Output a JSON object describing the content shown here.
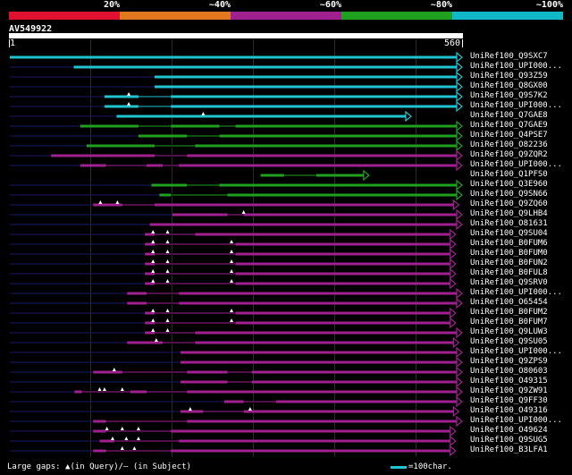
{
  "legend": {
    "colors": [
      "#e01030",
      "#e07820",
      "#a02090",
      "#20a020",
      "#10b8c8"
    ],
    "labels": [
      "20%",
      "~40%",
      "~60%",
      "~80%",
      "~100%"
    ]
  },
  "query": {
    "name": "AV549922",
    "start": "1",
    "end": "560"
  },
  "footer": {
    "gaps_text": "Large gaps: ▲(in Query)/– (in Subject)",
    "scale_text": "=100char."
  },
  "chart_data": {
    "type": "alignment",
    "query_length": 560,
    "color_by_identity": {
      "cyan": "~100%",
      "green": "~80%",
      "purple": "~60%"
    },
    "hits": [
      {
        "name": "UniRef100_Q9SXC7",
        "color": "#1fc4d0",
        "x1": 1,
        "x2": 560,
        "pre": 0,
        "gaps": [],
        "tris": []
      },
      {
        "name": "UniRef100_UPI000...",
        "color": "#1fc4d0",
        "x1": 80,
        "x2": 560,
        "pre": 1,
        "gaps": [],
        "tris": []
      },
      {
        "name": "UniRef100_Q93Z59",
        "color": "#1fc4d0",
        "x1": 180,
        "x2": 560,
        "pre": 1,
        "gaps": [],
        "tris": []
      },
      {
        "name": "UniRef100_Q8GX00",
        "color": "#1fc4d0",
        "x1": 180,
        "x2": 560,
        "pre": 1,
        "gaps": [],
        "tris": []
      },
      {
        "name": "UniRef100_Q9S7K2",
        "color": "#1fc4d0",
        "x1": 118,
        "x2": 560,
        "pre": 1,
        "gaps": [
          [
            160,
            200
          ]
        ],
        "tris": [
          148
        ]
      },
      {
        "name": "UniRef100_UPI000...",
        "color": "#1fc4d0",
        "x1": 118,
        "x2": 560,
        "pre": 1,
        "gaps": [
          [
            160,
            200
          ]
        ],
        "tris": [
          148
        ]
      },
      {
        "name": "UniRef100_Q7GAE8",
        "color": "#1fc4d0",
        "x1": 133,
        "x2": 497,
        "pre": 1,
        "gaps": [],
        "tris": [
          240
        ]
      },
      {
        "name": "UniRef100_Q7GAE9",
        "color": "#20a020",
        "x1": 88,
        "x2": 560,
        "pre": 1,
        "gaps": [
          [
            160,
            200
          ],
          [
            260,
            280
          ]
        ],
        "tris": []
      },
      {
        "name": "UniRef100_Q4PSE7",
        "color": "#20a020",
        "x1": 160,
        "x2": 560,
        "pre": 1,
        "gaps": [
          [
            220,
            260
          ]
        ],
        "tris": []
      },
      {
        "name": "UniRef100_O82236",
        "color": "#20a020",
        "x1": 96,
        "x2": 560,
        "pre": 1,
        "gaps": [
          [
            180,
            230
          ]
        ],
        "tris": []
      },
      {
        "name": "UniRef100_Q9ZQR2",
        "color": "#a02090",
        "x1": 52,
        "x2": 560,
        "pre": 1,
        "gaps": [
          [
            180,
            220
          ]
        ],
        "tris": []
      },
      {
        "name": "UniRef100_UPI000...",
        "color": "#a02090",
        "x1": 88,
        "x2": 560,
        "pre": 1,
        "gaps": [
          [
            120,
            170
          ],
          [
            190,
            210
          ]
        ],
        "tris": []
      },
      {
        "name": "UniRef100_Q1PFS0",
        "color": "#20a020",
        "x1": 311,
        "x2": 445,
        "pre": 0,
        "gaps": [
          [
            340,
            380
          ]
        ],
        "tris": []
      },
      {
        "name": "UniRef100_Q3E960",
        "color": "#20a020",
        "x1": 176,
        "x2": 560,
        "pre": 1,
        "gaps": [
          [
            220,
            260
          ]
        ],
        "tris": []
      },
      {
        "name": "UniRef100_Q9SN66",
        "color": "#20a020",
        "x1": 186,
        "x2": 560,
        "pre": 1,
        "gaps": [
          [
            200,
            270
          ]
        ],
        "tris": []
      },
      {
        "name": "UniRef100_Q9ZQ60",
        "color": "#a02090",
        "x1": 104,
        "x2": 556,
        "pre": 1,
        "gaps": [
          [
            140,
            180
          ]
        ],
        "tris": [
          113,
          134
        ]
      },
      {
        "name": "UniRef100_Q9LHB4",
        "color": "#a02090",
        "x1": 202,
        "x2": 560,
        "pre": 1,
        "gaps": [
          [
            270,
            290
          ]
        ],
        "tris": [
          290
        ]
      },
      {
        "name": "UniRef100_O81631",
        "color": "#a02090",
        "x1": 174,
        "x2": 560,
        "pre": 1,
        "gaps": [],
        "tris": []
      },
      {
        "name": "UniRef100_Q9SU04",
        "color": "#a02090",
        "x1": 168,
        "x2": 552,
        "pre": 1,
        "gaps": [
          [
            180,
            230
          ]
        ],
        "tris": [
          178,
          196
        ]
      },
      {
        "name": "UniRef100_B0FUM6",
        "color": "#a02090",
        "x1": 168,
        "x2": 552,
        "pre": 1,
        "gaps": [
          [
            180,
            280
          ]
        ],
        "tris": [
          178,
          196,
          275
        ]
      },
      {
        "name": "UniRef100_B0FUM0",
        "color": "#a02090",
        "x1": 168,
        "x2": 552,
        "pre": 1,
        "gaps": [
          [
            180,
            280
          ]
        ],
        "tris": [
          178,
          196,
          275
        ]
      },
      {
        "name": "UniRef100_B0FUN2",
        "color": "#a02090",
        "x1": 168,
        "x2": 552,
        "pre": 1,
        "gaps": [
          [
            180,
            280
          ]
        ],
        "tris": [
          178,
          196,
          275
        ]
      },
      {
        "name": "UniRef100_B0FUL8",
        "color": "#a02090",
        "x1": 168,
        "x2": 552,
        "pre": 1,
        "gaps": [
          [
            180,
            280
          ]
        ],
        "tris": [
          178,
          196,
          275
        ]
      },
      {
        "name": "UniRef100_Q9SRV0",
        "color": "#a02090",
        "x1": 168,
        "x2": 552,
        "pre": 1,
        "gaps": [
          [
            180,
            280
          ]
        ],
        "tris": [
          178,
          196,
          275
        ]
      },
      {
        "name": "UniRef100_UPI000...",
        "color": "#a02090",
        "x1": 146,
        "x2": 560,
        "pre": 1,
        "gaps": [
          [
            170,
            210
          ]
        ],
        "tris": []
      },
      {
        "name": "UniRef100_O65454",
        "color": "#a02090",
        "x1": 146,
        "x2": 560,
        "pre": 1,
        "gaps": [
          [
            170,
            210
          ]
        ],
        "tris": []
      },
      {
        "name": "UniRef100_B0FUM2",
        "color": "#a02090",
        "x1": 168,
        "x2": 552,
        "pre": 1,
        "gaps": [
          [
            180,
            280
          ]
        ],
        "tris": [
          178,
          196,
          275
        ]
      },
      {
        "name": "UniRef100_B0FUM7",
        "color": "#a02090",
        "x1": 168,
        "x2": 552,
        "pre": 1,
        "gaps": [
          [
            180,
            280
          ]
        ],
        "tris": [
          178,
          196,
          275
        ]
      },
      {
        "name": "UniRef100_Q9LUW3",
        "color": "#a02090",
        "x1": 168,
        "x2": 560,
        "pre": 1,
        "gaps": [
          [
            180,
            230
          ]
        ],
        "tris": [
          178,
          196
        ]
      },
      {
        "name": "UniRef100_Q9SU05",
        "color": "#a02090",
        "x1": 146,
        "x2": 556,
        "pre": 1,
        "gaps": [
          [
            190,
            230
          ]
        ],
        "tris": [
          182
        ]
      },
      {
        "name": "UniRef100_UPI000...",
        "color": "#a02090",
        "x1": 212,
        "x2": 560,
        "pre": 1,
        "gaps": [],
        "tris": []
      },
      {
        "name": "UniRef100_Q9ZPS9",
        "color": "#a02090",
        "x1": 212,
        "x2": 560,
        "pre": 1,
        "gaps": [],
        "tris": []
      },
      {
        "name": "UniRef100_O80603",
        "color": "#a02090",
        "x1": 104,
        "x2": 560,
        "pre": 1,
        "gaps": [
          [
            140,
            220
          ],
          [
            270,
            300
          ]
        ],
        "tris": [
          130
        ]
      },
      {
        "name": "UniRef100_O49315",
        "color": "#a02090",
        "x1": 212,
        "x2": 560,
        "pre": 1,
        "gaps": [
          [
            270,
            300
          ]
        ],
        "tris": []
      },
      {
        "name": "UniRef100_Q9ZW91",
        "color": "#a02090",
        "x1": 81,
        "x2": 560,
        "pre": 1,
        "gaps": [
          [
            90,
            150
          ],
          [
            170,
            220
          ]
        ],
        "tris": [
          112,
          118,
          140
        ]
      },
      {
        "name": "UniRef100_Q9FF30",
        "color": "#a02090",
        "x1": 266,
        "x2": 560,
        "pre": 1,
        "gaps": [
          [
            290,
            330
          ]
        ],
        "tris": []
      },
      {
        "name": "UniRef100_O49316",
        "color": "#a02090",
        "x1": 212,
        "x2": 556,
        "pre": 1,
        "gaps": [
          [
            240,
            290
          ]
        ],
        "tris": [
          224,
          298
        ]
      },
      {
        "name": "UniRef100_UPI000...",
        "color": "#a02090",
        "x1": 104,
        "x2": 560,
        "pre": 1,
        "gaps": [
          [
            120,
            220
          ]
        ],
        "tris": []
      },
      {
        "name": "UniRef100_O49624",
        "color": "#a02090",
        "x1": 104,
        "x2": 552,
        "pre": 1,
        "gaps": [
          [
            120,
            200
          ]
        ],
        "tris": [
          121,
          140,
          160
        ]
      },
      {
        "name": "UniRef100_Q9SUG5",
        "color": "#a02090",
        "x1": 112,
        "x2": 552,
        "pre": 1,
        "gaps": [
          [
            130,
            210
          ]
        ],
        "tris": [
          128,
          145,
          160
        ]
      },
      {
        "name": "UniRef100_B3LFA1",
        "color": "#a02090",
        "x1": 104,
        "x2": 552,
        "pre": 1,
        "gaps": [
          [
            120,
            200
          ]
        ],
        "tris": [
          140,
          155
        ]
      }
    ]
  }
}
